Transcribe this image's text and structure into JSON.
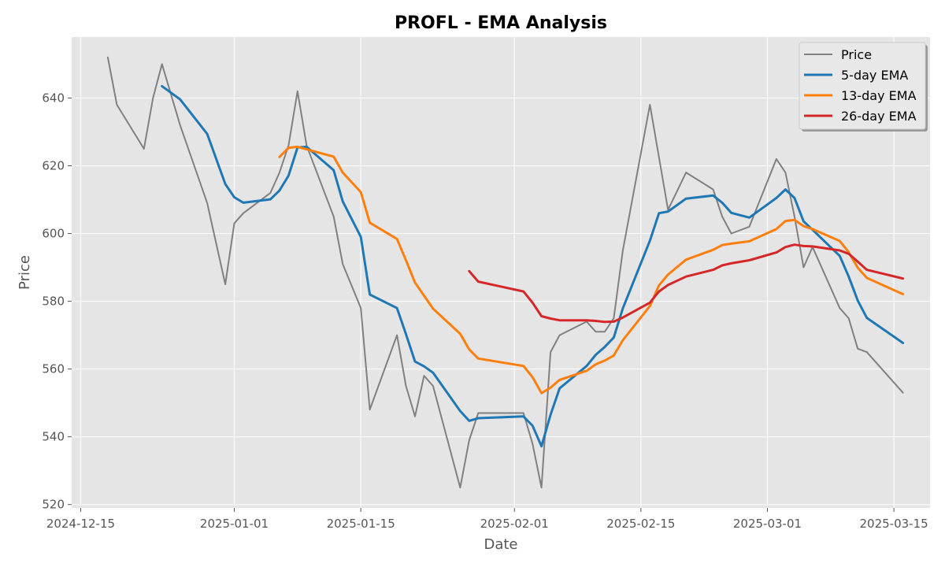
{
  "chart_data": {
    "type": "line",
    "title": "PROFL - EMA Analysis",
    "xlabel": "Date",
    "ylabel": "Price",
    "x_ticks": [
      "2024-12-15",
      "2025-01-01",
      "2025-01-15",
      "2025-02-01",
      "2025-02-15",
      "2025-03-01",
      "2025-03-15"
    ],
    "y_ticks": [
      520,
      540,
      560,
      580,
      600,
      620,
      640
    ],
    "xlim": [
      "2024-12-14",
      "2025-03-19"
    ],
    "ylim": [
      519,
      658
    ],
    "grid": true,
    "legend_position": "top-right",
    "series": [
      {
        "name": "Price",
        "color": "#808080",
        "points": [
          [
            "2024-12-18",
            652
          ],
          [
            "2024-12-19",
            638
          ],
          [
            "2024-12-22",
            625
          ],
          [
            "2024-12-23",
            640
          ],
          [
            "2024-12-24",
            650
          ],
          [
            "2024-12-26",
            632
          ],
          [
            "2024-12-29",
            609
          ],
          [
            "2024-12-31",
            585
          ],
          [
            "2025-01-01",
            603
          ],
          [
            "2025-01-02",
            606
          ],
          [
            "2025-01-05",
            612
          ],
          [
            "2025-01-06",
            618
          ],
          [
            "2025-01-07",
            626
          ],
          [
            "2025-01-08",
            642
          ],
          [
            "2025-01-09",
            626
          ],
          [
            "2025-01-12",
            605
          ],
          [
            "2025-01-13",
            591
          ],
          [
            "2025-01-15",
            578
          ],
          [
            "2025-01-16",
            548
          ],
          [
            "2025-01-19",
            570
          ],
          [
            "2025-01-20",
            555
          ],
          [
            "2025-01-21",
            546
          ],
          [
            "2025-01-22",
            558
          ],
          [
            "2025-01-23",
            555
          ],
          [
            "2025-01-26",
            525
          ],
          [
            "2025-01-27",
            539
          ],
          [
            "2025-01-28",
            547
          ],
          [
            "2025-02-02",
            547
          ],
          [
            "2025-02-03",
            538
          ],
          [
            "2025-02-04",
            525
          ],
          [
            "2025-02-05",
            565
          ],
          [
            "2025-02-06",
            570
          ],
          [
            "2025-02-09",
            574
          ],
          [
            "2025-02-10",
            571
          ],
          [
            "2025-02-11",
            571
          ],
          [
            "2025-02-12",
            575
          ],
          [
            "2025-02-13",
            595
          ],
          [
            "2025-02-16",
            638
          ],
          [
            "2025-02-18",
            607
          ],
          [
            "2025-02-20",
            618
          ],
          [
            "2025-02-23",
            613
          ],
          [
            "2025-02-24",
            605
          ],
          [
            "2025-02-25",
            600
          ],
          [
            "2025-02-27",
            602
          ],
          [
            "2025-03-02",
            622
          ],
          [
            "2025-03-03",
            618
          ],
          [
            "2025-03-04",
            605
          ],
          [
            "2025-03-05",
            590
          ],
          [
            "2025-03-06",
            596
          ],
          [
            "2025-03-09",
            578
          ],
          [
            "2025-03-10",
            575
          ],
          [
            "2025-03-11",
            566
          ],
          [
            "2025-03-12",
            565
          ],
          [
            "2025-03-16",
            553
          ]
        ]
      },
      {
        "name": "5-day EMA",
        "color": "#1f77b4",
        "points": [
          [
            "2024-12-24",
            643.5
          ],
          [
            "2024-12-26",
            639.6
          ],
          [
            "2024-12-29",
            629.4
          ],
          [
            "2024-12-31",
            614.6
          ],
          [
            "2025-01-01",
            610.7
          ],
          [
            "2025-01-02",
            609.1
          ],
          [
            "2025-01-05",
            610.1
          ],
          [
            "2025-01-06",
            612.7
          ],
          [
            "2025-01-07",
            617.1
          ],
          [
            "2025-01-08",
            625.4
          ],
          [
            "2025-01-09",
            625.6
          ],
          [
            "2025-01-12",
            618.7
          ],
          [
            "2025-01-13",
            609.5
          ],
          [
            "2025-01-15",
            599.0
          ],
          [
            "2025-01-16",
            582.0
          ],
          [
            "2025-01-19",
            578.0
          ],
          [
            "2025-01-20",
            570.3
          ],
          [
            "2025-01-21",
            562.2
          ],
          [
            "2025-01-22",
            560.8
          ],
          [
            "2025-01-23",
            558.9
          ],
          [
            "2025-01-26",
            547.6
          ],
          [
            "2025-01-27",
            544.7
          ],
          [
            "2025-01-28",
            545.5
          ],
          [
            "2025-02-02",
            546.0
          ],
          [
            "2025-02-03",
            543.3
          ],
          [
            "2025-02-04",
            537.2
          ],
          [
            "2025-02-05",
            546.5
          ],
          [
            "2025-02-06",
            554.3
          ],
          [
            "2025-02-09",
            560.9
          ],
          [
            "2025-02-10",
            564.2
          ],
          [
            "2025-02-11",
            566.5
          ],
          [
            "2025-02-12",
            569.3
          ],
          [
            "2025-02-13",
            577.9
          ],
          [
            "2025-02-16",
            597.9
          ],
          [
            "2025-02-17",
            606.0
          ],
          [
            "2025-02-18",
            606.5
          ],
          [
            "2025-02-20",
            610.3
          ],
          [
            "2025-02-23",
            611.2
          ],
          [
            "2025-02-24",
            609.1
          ],
          [
            "2025-02-25",
            606.1
          ],
          [
            "2025-02-27",
            604.7
          ],
          [
            "2025-03-02",
            610.5
          ],
          [
            "2025-03-03",
            613.0
          ],
          [
            "2025-03-04",
            610.5
          ],
          [
            "2025-03-05",
            603.6
          ],
          [
            "2025-03-06",
            601.1
          ],
          [
            "2025-03-09",
            593.4
          ],
          [
            "2025-03-10",
            587.3
          ],
          [
            "2025-03-11",
            580.2
          ],
          [
            "2025-03-12",
            575.1
          ],
          [
            "2025-03-16",
            567.7
          ]
        ]
      },
      {
        "name": "13-day EMA",
        "color": "#ff7f0e",
        "points": [
          [
            "2025-01-06",
            622.6
          ],
          [
            "2025-01-07",
            625.3
          ],
          [
            "2025-01-08",
            625.6
          ],
          [
            "2025-01-12",
            622.7
          ],
          [
            "2025-01-13",
            618.0
          ],
          [
            "2025-01-15",
            612.2
          ],
          [
            "2025-01-16",
            603.2
          ],
          [
            "2025-01-19",
            598.4
          ],
          [
            "2025-01-20",
            592.1
          ],
          [
            "2025-01-21",
            585.5
          ],
          [
            "2025-01-23",
            577.8
          ],
          [
            "2025-01-26",
            570.4
          ],
          [
            "2025-01-27",
            565.8
          ],
          [
            "2025-01-28",
            563.1
          ],
          [
            "2025-02-02",
            560.9
          ],
          [
            "2025-02-03",
            557.6
          ],
          [
            "2025-02-04",
            552.9
          ],
          [
            "2025-02-05",
            554.5
          ],
          [
            "2025-02-06",
            556.8
          ],
          [
            "2025-02-09",
            559.5
          ],
          [
            "2025-02-10",
            561.4
          ],
          [
            "2025-02-11",
            562.5
          ],
          [
            "2025-02-12",
            564.0
          ],
          [
            "2025-02-13",
            568.5
          ],
          [
            "2025-02-16",
            578.6
          ],
          [
            "2025-02-17",
            584.7
          ],
          [
            "2025-02-18",
            587.9
          ],
          [
            "2025-02-20",
            592.3
          ],
          [
            "2025-02-23",
            595.2
          ],
          [
            "2025-02-24",
            596.6
          ],
          [
            "2025-02-25",
            597.0
          ],
          [
            "2025-02-27",
            597.7
          ],
          [
            "2025-03-02",
            601.3
          ],
          [
            "2025-03-03",
            603.7
          ],
          [
            "2025-03-04",
            604.0
          ],
          [
            "2025-03-05",
            602.2
          ],
          [
            "2025-03-06",
            601.3
          ],
          [
            "2025-03-09",
            597.8
          ],
          [
            "2025-03-10",
            594.5
          ],
          [
            "2025-03-11",
            589.9
          ],
          [
            "2025-03-12",
            586.9
          ],
          [
            "2025-03-16",
            582.1
          ]
        ]
      },
      {
        "name": "26-day EMA",
        "color": "#d62728",
        "points": [
          [
            "2025-01-27",
            588.9
          ],
          [
            "2025-01-28",
            585.8
          ],
          [
            "2025-02-02",
            582.9
          ],
          [
            "2025-02-03",
            579.6
          ],
          [
            "2025-02-04",
            575.6
          ],
          [
            "2025-02-05",
            574.9
          ],
          [
            "2025-02-06",
            574.4
          ],
          [
            "2025-02-09",
            574.4
          ],
          [
            "2025-02-10",
            574.2
          ],
          [
            "2025-02-11",
            573.9
          ],
          [
            "2025-02-12",
            574.0
          ],
          [
            "2025-02-13",
            575.2
          ],
          [
            "2025-02-16",
            579.6
          ],
          [
            "2025-02-17",
            582.9
          ],
          [
            "2025-02-18",
            584.8
          ],
          [
            "2025-02-20",
            587.3
          ],
          [
            "2025-02-23",
            589.3
          ],
          [
            "2025-02-24",
            590.6
          ],
          [
            "2025-02-25",
            591.2
          ],
          [
            "2025-02-27",
            592.1
          ],
          [
            "2025-03-02",
            594.4
          ],
          [
            "2025-03-03",
            596.0
          ],
          [
            "2025-03-04",
            596.7
          ],
          [
            "2025-03-05",
            596.3
          ],
          [
            "2025-03-06",
            596.2
          ],
          [
            "2025-03-09",
            595.0
          ],
          [
            "2025-03-10",
            594.0
          ],
          [
            "2025-03-11",
            591.7
          ],
          [
            "2025-03-12",
            589.3
          ],
          [
            "2025-03-16",
            586.7
          ]
        ]
      }
    ]
  }
}
